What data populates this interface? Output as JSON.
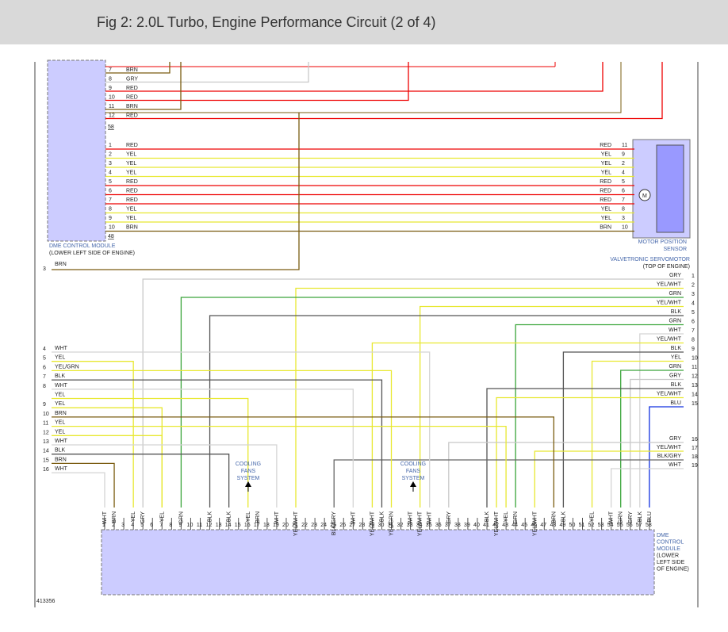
{
  "header": {
    "title": "Fig 2: 2.0L Turbo, Engine Performance Circuit (2 of 4)"
  },
  "upper_connector": {
    "label": "58",
    "pins": [
      {
        "pin": "7",
        "color": "BRN"
      },
      {
        "pin": "8",
        "color": "GRY"
      },
      {
        "pin": "9",
        "color": "RED"
      },
      {
        "pin": "10",
        "color": "RED"
      },
      {
        "pin": "11",
        "color": "BRN"
      },
      {
        "pin": "12",
        "color": "RED"
      }
    ]
  },
  "servo_connector": {
    "label": "48",
    "pins": [
      {
        "pin": "1",
        "color": "RED",
        "sensor_color": "RED",
        "sensor_pin": "11"
      },
      {
        "pin": "2",
        "color": "YEL",
        "sensor_color": "YEL",
        "sensor_pin": "9"
      },
      {
        "pin": "3",
        "color": "YEL",
        "sensor_color": "YEL",
        "sensor_pin": "2"
      },
      {
        "pin": "4",
        "color": "YEL",
        "sensor_color": "YEL",
        "sensor_pin": "4"
      },
      {
        "pin": "5",
        "color": "RED",
        "sensor_color": "RED",
        "sensor_pin": "5"
      },
      {
        "pin": "6",
        "color": "RED",
        "sensor_color": "RED",
        "sensor_pin": "6"
      },
      {
        "pin": "7",
        "color": "RED",
        "sensor_color": "RED",
        "sensor_pin": "7"
      },
      {
        "pin": "8",
        "color": "YEL",
        "sensor_color": "YEL",
        "sensor_pin": "8"
      },
      {
        "pin": "9",
        "color": "YEL",
        "sensor_color": "YEL",
        "sensor_pin": "3"
      },
      {
        "pin": "10",
        "color": "BRN",
        "sensor_color": "BRN",
        "sensor_pin": "10"
      }
    ]
  },
  "upper_module": {
    "name": "DME CONTROL MODULE",
    "location": "(LOWER LEFT SIDE OF ENGINE)"
  },
  "servomotor": {
    "sensor": [
      "MOTOR POSITION",
      "SENSOR"
    ],
    "name": "VALVETRONIC SERVOMOTOR",
    "location": "(TOP OF ENGINE)",
    "motor": "M"
  },
  "left_wire": {
    "pin": "3",
    "color": "BRN"
  },
  "right_connector": {
    "pins": [
      {
        "pin": "1",
        "color": "GRY"
      },
      {
        "pin": "2",
        "color": "YEL/WHT"
      },
      {
        "pin": "3",
        "color": "GRN"
      },
      {
        "pin": "4",
        "color": "YEL/WHT"
      },
      {
        "pin": "5",
        "color": "BLK"
      },
      {
        "pin": "6",
        "color": "GRN"
      },
      {
        "pin": "7",
        "color": "WHT"
      },
      {
        "pin": "8",
        "color": "YEL/WHT"
      },
      {
        "pin": "9",
        "color": "BLK"
      },
      {
        "pin": "10",
        "color": "YEL"
      },
      {
        "pin": "11",
        "color": "GRN"
      },
      {
        "pin": "12",
        "color": "GRY"
      },
      {
        "pin": "13",
        "color": "BLK"
      },
      {
        "pin": "14",
        "color": "YEL/WHT"
      },
      {
        "pin": "15",
        "color": "BLU"
      },
      {
        "pin": "16",
        "color": "GRY"
      },
      {
        "pin": "17",
        "color": "YEL/WHT"
      },
      {
        "pin": "18",
        "color": "BLK/GRY"
      },
      {
        "pin": "19",
        "color": "WHT"
      }
    ]
  },
  "left_connector": {
    "pins": [
      {
        "pin": "4",
        "color": "WHT"
      },
      {
        "pin": "5",
        "color": "YEL"
      },
      {
        "pin": "6",
        "color": "YEL/GRN"
      },
      {
        "pin": "7",
        "color": "BLK"
      },
      {
        "pin": "8",
        "color": "WHT"
      },
      {
        "pin": null,
        "color": "YEL"
      },
      {
        "pin": "9",
        "color": "YEL"
      },
      {
        "pin": "10",
        "color": "BRN"
      },
      {
        "pin": "11",
        "color": "YEL"
      },
      {
        "pin": "12",
        "color": "YEL"
      },
      {
        "pin": "13",
        "color": "WHT"
      },
      {
        "pin": "14",
        "color": "BLK"
      },
      {
        "pin": "15",
        "color": "BRN"
      },
      {
        "pin": "16",
        "color": "WHT"
      }
    ]
  },
  "cooling_fans": [
    {
      "lines": [
        "COOLING",
        "FANS",
        "SYSTEM"
      ]
    },
    {
      "lines": [
        "COOLING",
        "FANS",
        "SYSTEM"
      ]
    }
  ],
  "lower_module": {
    "pins": [
      "1",
      "2",
      "3",
      "4",
      "5",
      "6",
      "7",
      "8",
      "9",
      "10",
      "11",
      "12",
      "13",
      "14",
      "15",
      "16",
      "17",
      "18",
      "19",
      "20",
      "21",
      "22",
      "23",
      "24",
      "25",
      "26",
      "27",
      "28",
      "29",
      "30",
      "31",
      "32",
      "33",
      "34",
      "35",
      "36",
      "37",
      "38",
      "39",
      "40",
      "41",
      "42",
      "43",
      "44",
      "45",
      "46",
      "47",
      "48",
      "49",
      "50",
      "51",
      "52",
      "53",
      "54",
      "55",
      "56",
      "57",
      "58"
    ],
    "colors": [
      "WHT",
      "BRN",
      null,
      "YEL",
      "GRY",
      null,
      "YEL",
      null,
      "GRN",
      null,
      null,
      "BLK",
      null,
      "BLK",
      null,
      "YEL",
      "BRN",
      null,
      "WHT",
      null,
      "YEL/WHT",
      null,
      null,
      null,
      "BLK/GRY",
      null,
      "WHT",
      null,
      "YEL/WHT",
      "BLK",
      "YEL/GRN",
      null,
      "WHT",
      "YEL/WHT",
      "WHT",
      null,
      "GRY",
      null,
      null,
      null,
      "BLK",
      "YEL/WHT",
      "YEL",
      "GRN",
      null,
      "YEL/WHT",
      null,
      "BRN",
      "BLK",
      null,
      null,
      "YEL",
      null,
      "WHT",
      "GRN",
      "GRY",
      "BLK",
      "BLU"
    ],
    "lines": [
      "DME",
      "CONTROL",
      "MODULE",
      "(LOWER",
      "LEFT SIDE",
      "OF ENGINE)"
    ]
  },
  "figure_id": "413356"
}
